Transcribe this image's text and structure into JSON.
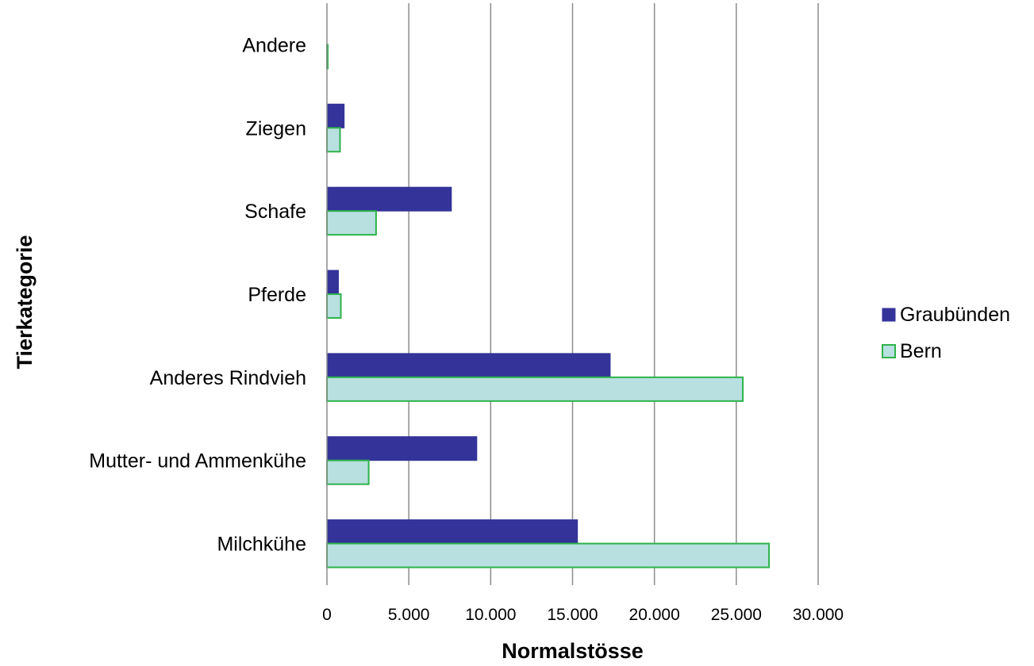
{
  "chart_data": {
    "type": "bar",
    "orientation": "horizontal",
    "title": "",
    "xlabel": "Normalstösse",
    "ylabel": "Tierkategorie",
    "categories": [
      "Milchkühe",
      "Mutter- und Ammenkühe",
      "Anderes Rindvieh",
      "Pferde",
      "Schafe",
      "Ziegen",
      "Andere"
    ],
    "series": [
      {
        "name": "Graubünden",
        "values": [
          15300,
          9150,
          17300,
          700,
          7600,
          1050,
          0
        ],
        "color": "#333399",
        "stroke": "#333399"
      },
      {
        "name": "Bern",
        "values": [
          27000,
          2550,
          25400,
          850,
          3000,
          800,
          50
        ],
        "color": "#b8e0e0",
        "stroke": "#2db34a"
      }
    ],
    "xlim": [
      0,
      30000
    ],
    "xticks": [
      0,
      5000,
      10000,
      15000,
      20000,
      25000,
      30000
    ],
    "xtick_labels": [
      "0",
      "5.000",
      "10.000",
      "15.000",
      "20.000",
      "25.000",
      "30.000"
    ],
    "grid": true,
    "legend_position": "right"
  }
}
